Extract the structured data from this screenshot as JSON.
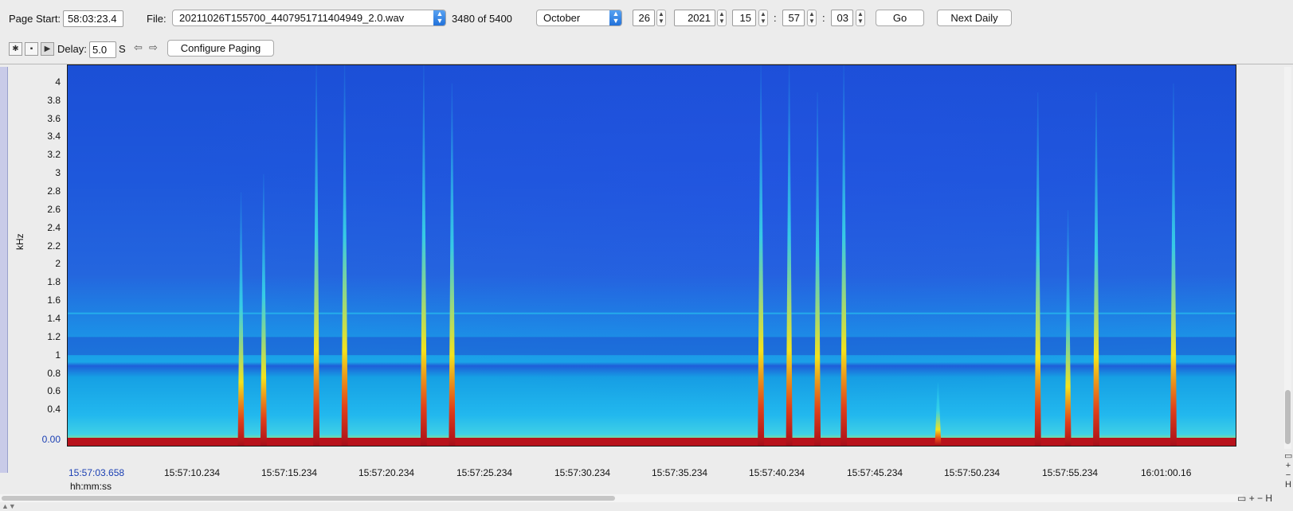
{
  "toolbar": {
    "page_start_label": "Page Start:",
    "page_start_value": "58:03:23.4",
    "file_label": "File:",
    "file_value": "20211026T155700_4407951711404949_2.0.wav",
    "file_position": "3480 of 5400",
    "month": "October",
    "day": "26",
    "year": "2021",
    "hour": "15",
    "minute": "57",
    "second": "03",
    "time_sep": ":",
    "go_label": "Go",
    "next_daily_label": "Next Daily",
    "delay_label": "Delay:",
    "delay_value": "5.0",
    "delay_unit": "S",
    "configure_paging_label": "Configure Paging"
  },
  "spectrogram": {
    "y_unit_label": "kHz",
    "x_unit_label": "hh:mm:ss",
    "y_ticks": [
      "4",
      "3.8",
      "3.6",
      "3.4",
      "3.2",
      "3",
      "2.8",
      "2.6",
      "2.4",
      "2.2",
      "2",
      "1.8",
      "1.6",
      "1.4",
      "1.2",
      "1",
      "0.8",
      "0.6",
      "0.4"
    ],
    "y_origin_label": "0.00",
    "x_ticks": [
      "15:57:03.658",
      "15:57:10.234",
      "15:57:15.234",
      "15:57:20.234",
      "15:57:25.234",
      "15:57:30.234",
      "15:57:35.234",
      "15:57:40.234",
      "15:57:45.234",
      "15:57:50.234",
      "15:57:55.234",
      "16:01:00.16"
    ],
    "colors": {
      "background": "#1e56d8",
      "band": "#22b8ee",
      "spike_core": "#c1121b",
      "spike_mid": "#f0d21a",
      "origin_label": "#1a3fb3"
    }
  },
  "chart_data": {
    "type": "heatmap",
    "ylabel": "kHz",
    "xlabel": "hh:mm:ss",
    "ylim": [
      0,
      4.2
    ],
    "y_ticks": [
      0,
      0.4,
      0.6,
      0.8,
      1,
      1.2,
      1.4,
      1.6,
      1.8,
      2,
      2.2,
      2.4,
      2.6,
      2.8,
      3,
      3.2,
      3.4,
      3.6,
      3.8,
      4
    ],
    "x_ticks": [
      "15:57:03.658",
      "15:57:10.234",
      "15:57:15.234",
      "15:57:20.234",
      "15:57:25.234",
      "15:57:30.234",
      "15:57:35.234",
      "15:57:40.234",
      "15:57:45.234",
      "15:57:50.234",
      "15:57:55.234",
      "16:01:00.16"
    ],
    "spike_columns": [
      {
        "x_sec": 9.2,
        "peak_khz": 2.8
      },
      {
        "x_sec": 10.4,
        "peak_khz": 3.0
      },
      {
        "x_sec": 13.2,
        "peak_khz": 4.2
      },
      {
        "x_sec": 14.7,
        "peak_khz": 4.2
      },
      {
        "x_sec": 18.9,
        "peak_khz": 4.2
      },
      {
        "x_sec": 20.4,
        "peak_khz": 4.0
      },
      {
        "x_sec": 36.8,
        "peak_khz": 4.2
      },
      {
        "x_sec": 38.3,
        "peak_khz": 4.2
      },
      {
        "x_sec": 39.8,
        "peak_khz": 3.9
      },
      {
        "x_sec": 41.2,
        "peak_khz": 4.2
      },
      {
        "x_sec": 46.2,
        "peak_khz": 0.7
      },
      {
        "x_sec": 51.5,
        "peak_khz": 3.9
      },
      {
        "x_sec": 53.1,
        "peak_khz": 2.6
      },
      {
        "x_sec": 54.6,
        "peak_khz": 3.9
      },
      {
        "x_sec": 58.7,
        "peak_khz": 4.0
      }
    ]
  }
}
